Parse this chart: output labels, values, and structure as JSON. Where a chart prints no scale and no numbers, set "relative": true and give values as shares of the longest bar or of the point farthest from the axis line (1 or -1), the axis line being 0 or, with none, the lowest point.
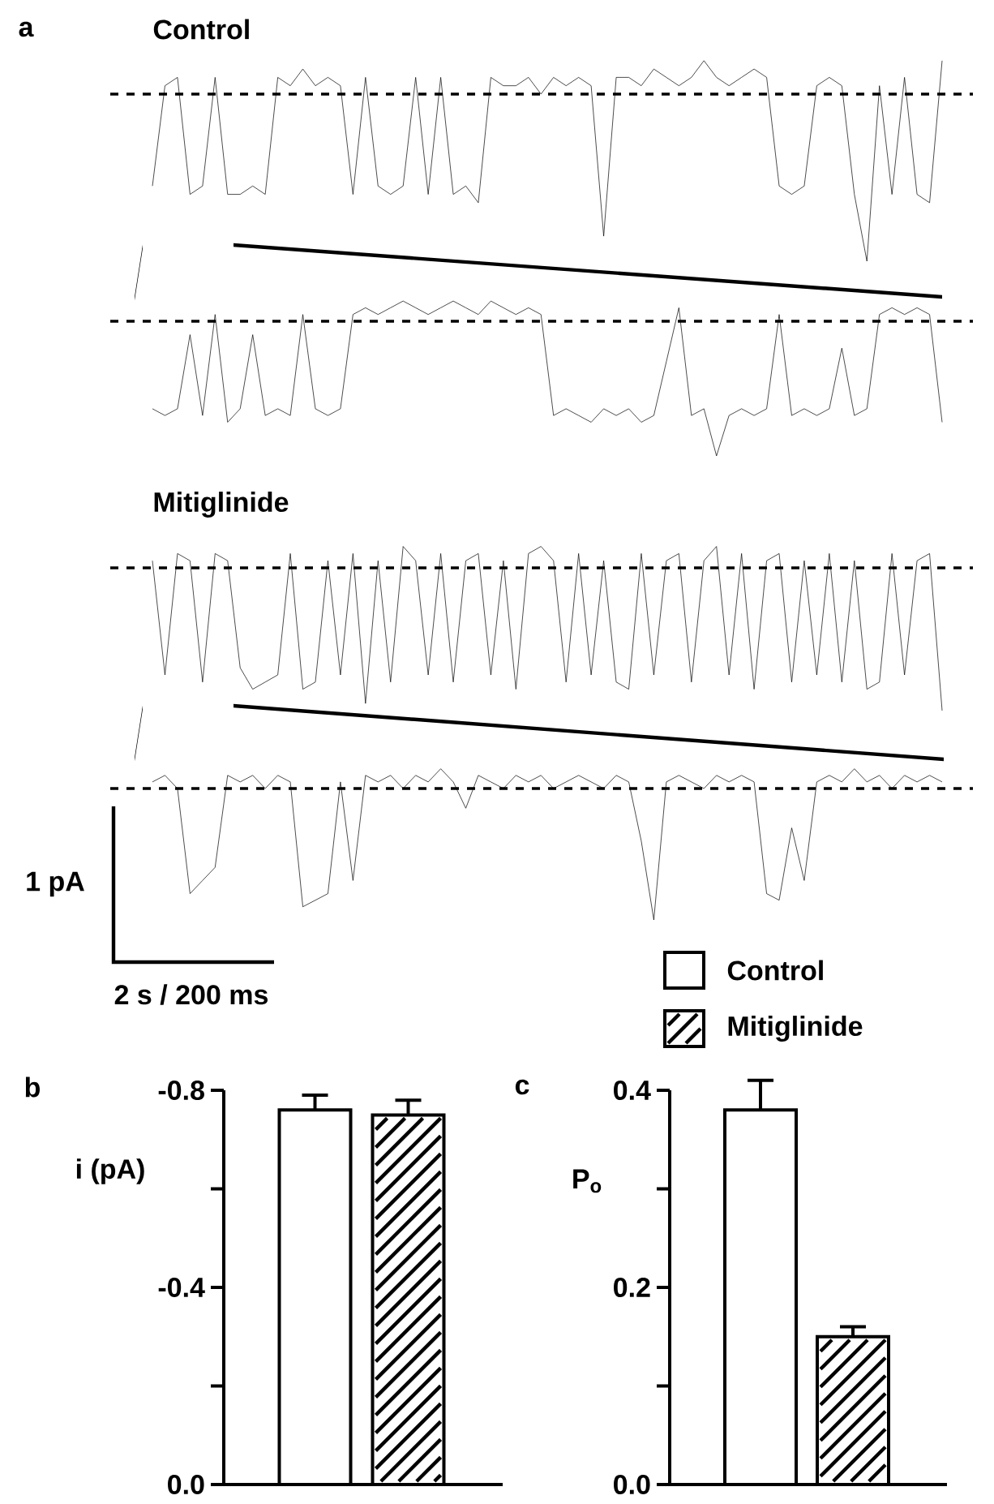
{
  "chart_data": [
    {
      "type": "line",
      "title": "Control",
      "relative": true,
      "tick_labels": false,
      "annotations": [
        "a"
      ],
      "categories": [
        null,
        null,
        null,
        null,
        null,
        null,
        null,
        null,
        null,
        null,
        null,
        null,
        null,
        null,
        null,
        null,
        null,
        null,
        null,
        null,
        null,
        null,
        null,
        null,
        null,
        null,
        null,
        null,
        null,
        null,
        null,
        null,
        null,
        null,
        null,
        null,
        null,
        null,
        null,
        null,
        null,
        null,
        null,
        null,
        null,
        null,
        null,
        null,
        null,
        null,
        null,
        null,
        null,
        null,
        null,
        null,
        null,
        null,
        null,
        null,
        null,
        null,
        null,
        null
      ],
      "series": [
        {
          "color": "#000000",
          "values": [
            -0.55,
            0.05,
            0.1,
            -0.6,
            -0.55,
            0.1,
            -0.6,
            -0.6,
            -0.55,
            -0.6,
            0.1,
            0.05,
            0.15,
            0.05,
            0.1,
            0.05,
            -0.6,
            0.1,
            -0.55,
            -0.6,
            -0.55,
            0.1,
            -0.6,
            0.1,
            -0.6,
            -0.55,
            -0.65,
            0.1,
            0.05,
            0.05,
            0.1,
            0.0,
            0.1,
            0.05,
            0.1,
            0.05,
            -0.85,
            0.1,
            0.1,
            0.05,
            0.15,
            0.1,
            0.05,
            0.1,
            0.2,
            0.1,
            0.05,
            0.1,
            0.15,
            0.1,
            -0.55,
            -0.6,
            -0.55,
            0.05,
            0.1,
            0.05,
            -0.6,
            -1.0,
            0.05,
            -0.6,
            0.1,
            -0.6,
            -0.65,
            0.2
          ]
        }
      ],
      "ref_lines": [
        {
          "axis": "y",
          "value": 0,
          "line_style": "dashed"
        }
      ]
    },
    {
      "type": "line",
      "relative": true,
      "tick_labels": false,
      "categories": [
        null,
        null,
        null,
        null,
        null,
        null,
        null,
        null,
        null,
        null,
        null,
        null,
        null,
        null,
        null,
        null,
        null,
        null,
        null,
        null,
        null,
        null,
        null,
        null,
        null,
        null,
        null,
        null,
        null,
        null,
        null,
        null,
        null,
        null,
        null,
        null,
        null,
        null,
        null,
        null,
        null,
        null,
        null,
        null,
        null,
        null,
        null,
        null,
        null,
        null,
        null,
        null,
        null,
        null,
        null,
        null,
        null,
        null,
        null,
        null,
        null,
        null,
        null,
        null
      ],
      "series": [
        {
          "color": "#000000",
          "values": [
            -0.65,
            -0.7,
            -0.65,
            -0.1,
            -0.7,
            0.05,
            -0.75,
            -0.65,
            -0.1,
            -0.7,
            -0.65,
            -0.7,
            0.05,
            -0.65,
            -0.7,
            -0.65,
            0.05,
            0.1,
            0.05,
            0.1,
            0.15,
            0.1,
            0.05,
            0.1,
            0.15,
            0.1,
            0.05,
            0.15,
            0.1,
            0.05,
            0.1,
            0.05,
            -0.7,
            -0.65,
            -0.7,
            -0.75,
            -0.65,
            -0.7,
            -0.65,
            -0.75,
            -0.7,
            -0.3,
            0.1,
            -0.7,
            -0.65,
            -1.0,
            -0.7,
            -0.65,
            -0.7,
            -0.65,
            0.05,
            -0.7,
            -0.65,
            -0.7,
            -0.65,
            -0.2,
            -0.7,
            -0.65,
            0.05,
            0.1,
            0.05,
            0.1,
            0.05,
            -0.75
          ]
        }
      ],
      "ref_lines": [
        {
          "axis": "y",
          "value": 0,
          "line_style": "dashed"
        }
      ]
    },
    {
      "type": "line",
      "title": "Mitiglinide",
      "relative": true,
      "tick_labels": false,
      "categories": [
        null,
        null,
        null,
        null,
        null,
        null,
        null,
        null,
        null,
        null,
        null,
        null,
        null,
        null,
        null,
        null,
        null,
        null,
        null,
        null,
        null,
        null,
        null,
        null,
        null,
        null,
        null,
        null,
        null,
        null,
        null,
        null,
        null,
        null,
        null,
        null,
        null,
        null,
        null,
        null,
        null,
        null,
        null,
        null,
        null,
        null,
        null,
        null,
        null,
        null,
        null,
        null,
        null,
        null,
        null,
        null,
        null,
        null,
        null,
        null,
        null,
        null,
        null,
        null
      ],
      "series": [
        {
          "color": "#000000",
          "values": [
            0.05,
            -0.75,
            0.1,
            0.05,
            -0.8,
            0.1,
            0.05,
            -0.7,
            -0.85,
            -0.8,
            -0.75,
            0.1,
            -0.85,
            -0.8,
            0.05,
            -0.75,
            0.1,
            -0.95,
            0.05,
            -0.8,
            0.15,
            0.05,
            -0.75,
            0.1,
            -0.8,
            0.05,
            0.1,
            -0.75,
            0.05,
            -0.85,
            0.1,
            0.15,
            0.05,
            -0.8,
            0.1,
            -0.75,
            0.05,
            -0.8,
            -0.85,
            0.1,
            -0.75,
            0.05,
            0.1,
            -0.8,
            0.05,
            0.15,
            -0.75,
            0.1,
            -0.85,
            0.05,
            0.1,
            -0.8,
            0.05,
            -0.75,
            0.1,
            -0.8,
            0.05,
            -0.85,
            -0.8,
            0.1,
            -0.75,
            0.05,
            0.1,
            -1.0
          ]
        }
      ],
      "ref_lines": [
        {
          "axis": "y",
          "value": 0,
          "line_style": "dashed"
        }
      ]
    },
    {
      "type": "line",
      "relative": true,
      "tick_labels": false,
      "annotations": [
        "1 pA",
        "2 s / 200 ms"
      ],
      "categories": [
        null,
        null,
        null,
        null,
        null,
        null,
        null,
        null,
        null,
        null,
        null,
        null,
        null,
        null,
        null,
        null,
        null,
        null,
        null,
        null,
        null,
        null,
        null,
        null,
        null,
        null,
        null,
        null,
        null,
        null,
        null,
        null,
        null,
        null,
        null,
        null,
        null,
        null,
        null,
        null,
        null,
        null,
        null,
        null,
        null,
        null,
        null,
        null,
        null,
        null,
        null,
        null,
        null,
        null,
        null,
        null,
        null,
        null,
        null,
        null,
        null,
        null,
        null,
        null
      ],
      "series": [
        {
          "color": "#000000",
          "values": [
            0.05,
            0.1,
            0.0,
            -0.8,
            -0.7,
            -0.6,
            0.1,
            0.05,
            0.1,
            0.0,
            0.1,
            0.05,
            -0.9,
            -0.85,
            -0.8,
            0.05,
            -0.7,
            0.1,
            0.05,
            0.1,
            0.0,
            0.1,
            0.05,
            0.15,
            0.05,
            -0.15,
            0.1,
            0.05,
            0.0,
            0.1,
            0.05,
            0.1,
            0.0,
            0.05,
            0.1,
            0.05,
            0.0,
            0.1,
            0.05,
            -0.4,
            -1.0,
            0.05,
            0.1,
            0.05,
            0.0,
            0.1,
            0.05,
            0.1,
            0.05,
            -0.8,
            -0.85,
            -0.3,
            -0.7,
            0.05,
            0.1,
            0.05,
            0.15,
            0.05,
            0.1,
            0.0,
            0.1,
            0.05,
            0.1,
            0.05
          ]
        }
      ],
      "ref_lines": [
        {
          "axis": "y",
          "value": 0,
          "line_style": "dashed"
        }
      ]
    },
    {
      "type": "bar",
      "ylabel": "i (pA)",
      "annotations": [
        "b"
      ],
      "tick_labels": "y",
      "categories": [
        null
      ],
      "series": [
        {
          "color": "#ffffff",
          "values": [
            -0.76
          ],
          "errors": [
            0.03
          ]
        },
        {
          "color": "#ffffff",
          "values": [
            -0.75
          ],
          "errors": [
            0.03
          ]
        }
      ],
      "ylim": [
        0,
        -0.8
      ],
      "yticks": [
        {
          "value": 0,
          "label": "0.0"
        },
        {
          "value": -0.2,
          "label": null
        },
        -0.4,
        {
          "value": -0.6,
          "label": null
        },
        -0.8
      ]
    },
    {
      "type": "bar",
      "ylabel": "P$_{o}$",
      "annotations": [
        "c"
      ],
      "tick_labels": "y",
      "categories": [
        null
      ],
      "legend": "top left",
      "series": [
        {
          "name": "Control",
          "color": "#ffffff",
          "values": [
            0.38
          ],
          "errors": [
            0.03
          ]
        },
        {
          "name": "Mitiglinide",
          "color": "#ffffff",
          "values": [
            0.15
          ],
          "errors": [
            0.01
          ]
        }
      ],
      "ylim": [
        0,
        0.4
      ],
      "yticks": [
        {
          "value": 0,
          "label": "0.0"
        },
        {
          "value": 0.1,
          "label": null
        },
        0.2,
        {
          "value": 0.3,
          "label": null
        },
        0.4
      ]
    }
  ]
}
